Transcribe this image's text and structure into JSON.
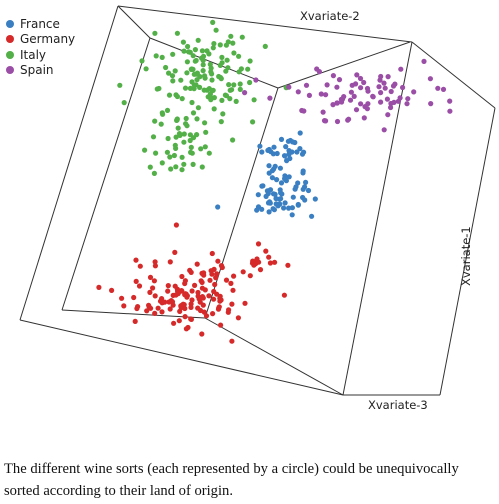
{
  "chart_data": {
    "type": "scatter",
    "dimensions": 3,
    "axes": {
      "x": "Xvariate-1",
      "y": "Xvariate-2",
      "z": "Xvariate-3"
    },
    "grid": false,
    "legend_position": "top-left",
    "series": [
      {
        "name": "France",
        "color": "#3a7fc1",
        "points": [
          [
            0.5,
            0.22,
            0.5
          ],
          [
            0.55,
            0.3,
            0.53
          ]
        ]
      },
      {
        "name": "Germany",
        "color": "#d62a2a",
        "points": [
          [
            0.8,
            0.35,
            0.4
          ],
          [
            0.72,
            0.45,
            0.42
          ]
        ]
      },
      {
        "name": "Italy",
        "color": "#53b048",
        "points": [
          [
            0.2,
            0.4,
            0.3
          ],
          [
            0.3,
            0.45,
            0.32
          ]
        ]
      },
      {
        "name": "Spain",
        "color": "#9b4ea6",
        "points": [
          [
            0.25,
            0.78,
            0.7
          ],
          [
            0.3,
            0.85,
            0.72
          ]
        ]
      }
    ]
  },
  "caption": "The different wine sorts (each represented by a circle) could be unequivocally sorted according to their land of origin."
}
